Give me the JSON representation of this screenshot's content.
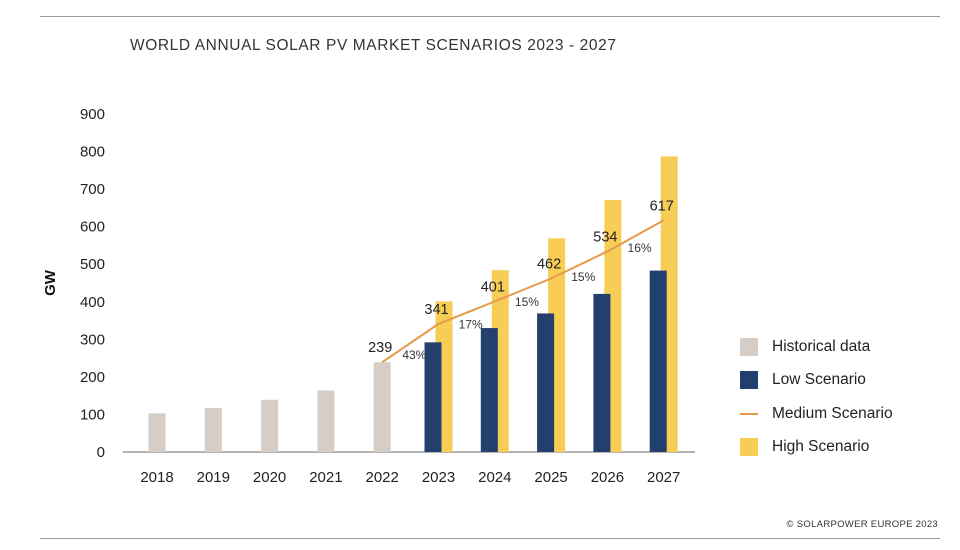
{
  "title": "WORLD ANNUAL SOLAR PV MARKET SCENARIOS 2023 - 2027",
  "credit": "© SOLARPOWER EUROPE 2023",
  "colors": {
    "historical": "#d6cdc6",
    "low": "#233f6e",
    "medium": "#e59a4c",
    "high": "#f7cd56"
  },
  "legend": [
    {
      "key": "historical",
      "label": "Historical data",
      "kind": "box"
    },
    {
      "key": "low",
      "label": "Low Scenario",
      "kind": "box"
    },
    {
      "key": "medium",
      "label": "Medium Scenario",
      "kind": "line"
    },
    {
      "key": "high",
      "label": "High Scenario",
      "kind": "box"
    }
  ],
  "chart_data": {
    "type": "bar",
    "title": "WORLD ANNUAL SOLAR PV MARKET SCENARIOS 2023 - 2027",
    "xlabel": "",
    "ylabel": "GW",
    "ylim": [
      0,
      900
    ],
    "yticks": [
      0,
      100,
      200,
      300,
      400,
      500,
      600,
      700,
      800,
      900
    ],
    "categories": [
      "2018",
      "2019",
      "2020",
      "2021",
      "2022",
      "2023",
      "2024",
      "2025",
      "2026",
      "2027"
    ],
    "grid": false,
    "legend_position": "right",
    "series": [
      {
        "name": "Historical data",
        "type": "bar",
        "values": [
          103,
          117,
          139,
          164,
          239,
          null,
          null,
          null,
          null,
          null
        ]
      },
      {
        "name": "Low Scenario",
        "type": "bar",
        "values": [
          null,
          null,
          null,
          null,
          null,
          292,
          330,
          369,
          421,
          483
        ]
      },
      {
        "name": "High Scenario",
        "type": "bar",
        "values": [
          null,
          null,
          null,
          null,
          null,
          401,
          484,
          569,
          671,
          787
        ]
      },
      {
        "name": "Medium Scenario",
        "type": "line",
        "values": [
          null,
          null,
          null,
          null,
          239,
          341,
          401,
          462,
          534,
          617
        ]
      }
    ],
    "data_labels": [
      {
        "category": "2022",
        "text": "239"
      },
      {
        "category": "2023",
        "text": "341"
      },
      {
        "category": "2024",
        "text": "401"
      },
      {
        "category": "2025",
        "text": "462"
      },
      {
        "category": "2026",
        "text": "534"
      },
      {
        "category": "2027",
        "text": "617"
      }
    ],
    "growth_labels": [
      {
        "category": "2023",
        "text": "43%"
      },
      {
        "category": "2024",
        "text": "17%"
      },
      {
        "category": "2025",
        "text": "15%"
      },
      {
        "category": "2026",
        "text": "15%"
      },
      {
        "category": "2027",
        "text": "16%"
      }
    ]
  }
}
